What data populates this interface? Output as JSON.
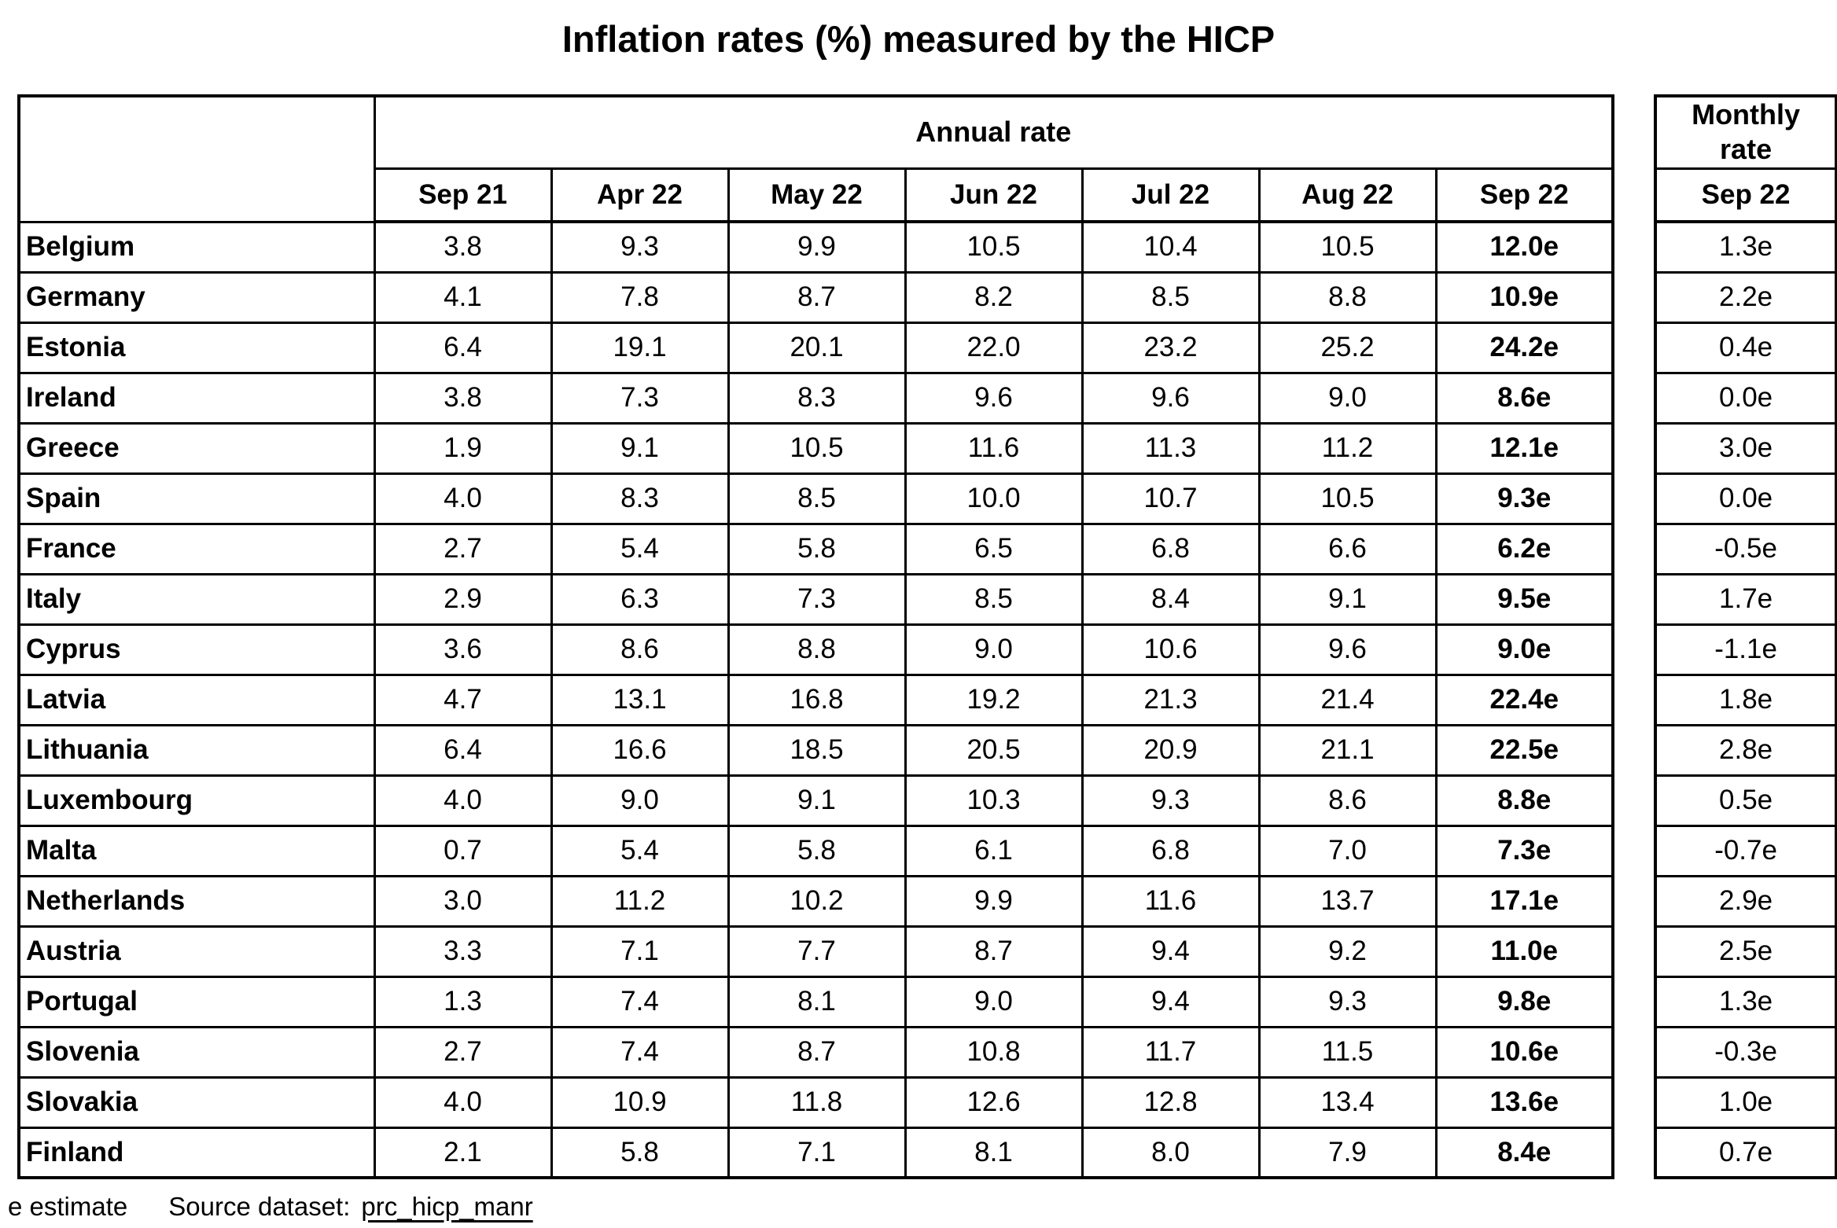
{
  "title": "Inflation rates (%) measured by the HICP",
  "chart_data": {
    "type": "table",
    "title": "Inflation rates (%) measured by the HICP",
    "column_groups": {
      "annual": "Annual rate",
      "monthly": "Monthly rate"
    },
    "annual_columns": [
      "Sep 21",
      "Apr 22",
      "May 22",
      "Jun 22",
      "Jul 22",
      "Aug 22",
      "Sep 22"
    ],
    "monthly_column": "Sep 22",
    "rows": [
      {
        "country": "Belgium",
        "annual": [
          "3.8",
          "9.3",
          "9.9",
          "10.5",
          "10.4",
          "10.5",
          "12.0e"
        ],
        "monthly": "1.3e"
      },
      {
        "country": "Germany",
        "annual": [
          "4.1",
          "7.8",
          "8.7",
          "8.2",
          "8.5",
          "8.8",
          "10.9e"
        ],
        "monthly": "2.2e"
      },
      {
        "country": "Estonia",
        "annual": [
          "6.4",
          "19.1",
          "20.1",
          "22.0",
          "23.2",
          "25.2",
          "24.2e"
        ],
        "monthly": "0.4e"
      },
      {
        "country": "Ireland",
        "annual": [
          "3.8",
          "7.3",
          "8.3",
          "9.6",
          "9.6",
          "9.0",
          "8.6e"
        ],
        "monthly": "0.0e"
      },
      {
        "country": "Greece",
        "annual": [
          "1.9",
          "9.1",
          "10.5",
          "11.6",
          "11.3",
          "11.2",
          "12.1e"
        ],
        "monthly": "3.0e"
      },
      {
        "country": "Spain",
        "annual": [
          "4.0",
          "8.3",
          "8.5",
          "10.0",
          "10.7",
          "10.5",
          "9.3e"
        ],
        "monthly": "0.0e"
      },
      {
        "country": "France",
        "annual": [
          "2.7",
          "5.4",
          "5.8",
          "6.5",
          "6.8",
          "6.6",
          "6.2e"
        ],
        "monthly": "-0.5e"
      },
      {
        "country": "Italy",
        "annual": [
          "2.9",
          "6.3",
          "7.3",
          "8.5",
          "8.4",
          "9.1",
          "9.5e"
        ],
        "monthly": "1.7e"
      },
      {
        "country": "Cyprus",
        "annual": [
          "3.6",
          "8.6",
          "8.8",
          "9.0",
          "10.6",
          "9.6",
          "9.0e"
        ],
        "monthly": "-1.1e"
      },
      {
        "country": "Latvia",
        "annual": [
          "4.7",
          "13.1",
          "16.8",
          "19.2",
          "21.3",
          "21.4",
          "22.4e"
        ],
        "monthly": "1.8e"
      },
      {
        "country": "Lithuania",
        "annual": [
          "6.4",
          "16.6",
          "18.5",
          "20.5",
          "20.9",
          "21.1",
          "22.5e"
        ],
        "monthly": "2.8e"
      },
      {
        "country": "Luxembourg",
        "annual": [
          "4.0",
          "9.0",
          "9.1",
          "10.3",
          "9.3",
          "8.6",
          "8.8e"
        ],
        "monthly": "0.5e"
      },
      {
        "country": "Malta",
        "annual": [
          "0.7",
          "5.4",
          "5.8",
          "6.1",
          "6.8",
          "7.0",
          "7.3e"
        ],
        "monthly": "-0.7e"
      },
      {
        "country": "Netherlands",
        "annual": [
          "3.0",
          "11.2",
          "10.2",
          "9.9",
          "11.6",
          "13.7",
          "17.1e"
        ],
        "monthly": "2.9e"
      },
      {
        "country": "Austria",
        "annual": [
          "3.3",
          "7.1",
          "7.7",
          "8.7",
          "9.4",
          "9.2",
          "11.0e"
        ],
        "monthly": "2.5e"
      },
      {
        "country": "Portugal",
        "annual": [
          "1.3",
          "7.4",
          "8.1",
          "9.0",
          "9.4",
          "9.3",
          "9.8e"
        ],
        "monthly": "1.3e"
      },
      {
        "country": "Slovenia",
        "annual": [
          "2.7",
          "7.4",
          "8.7",
          "10.8",
          "11.7",
          "11.5",
          "10.6e"
        ],
        "monthly": "-0.3e"
      },
      {
        "country": "Slovakia",
        "annual": [
          "4.0",
          "10.9",
          "11.8",
          "12.6",
          "12.8",
          "13.4",
          "13.6e"
        ],
        "monthly": "1.0e"
      },
      {
        "country": "Finland",
        "annual": [
          "2.1",
          "5.8",
          "7.1",
          "8.1",
          "8.0",
          "7.9",
          "8.4e"
        ],
        "monthly": "0.7e"
      }
    ]
  },
  "footer": {
    "estimate_note": "e estimate",
    "source_label": "Source dataset:",
    "source_link": "prc_hicp_manr"
  }
}
